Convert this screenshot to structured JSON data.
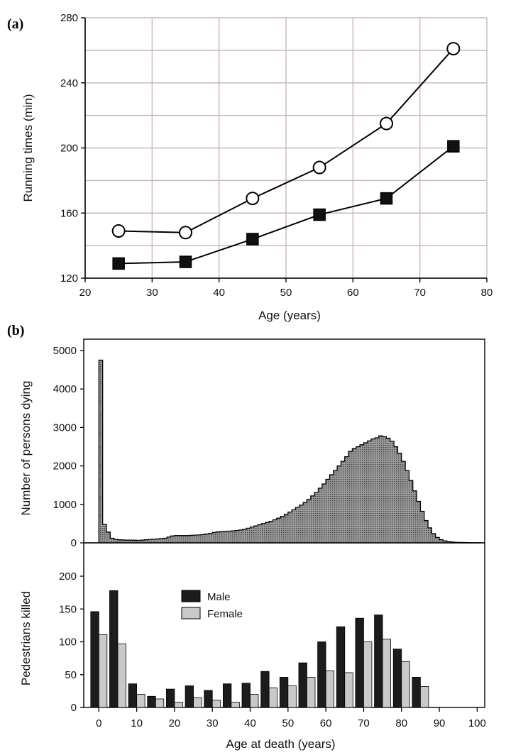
{
  "chart_data": [
    {
      "panel": "(a)",
      "type": "line",
      "xlabel": "Age  (years)",
      "ylabel": "Running times (min)",
      "xlim": [
        20,
        80
      ],
      "ylim": [
        120,
        280
      ],
      "xticks": [
        20,
        30,
        40,
        50,
        60,
        70,
        80
      ],
      "yticks": [
        120,
        160,
        200,
        240,
        280
      ],
      "grid": true,
      "series": [
        {
          "marker": "open-circle",
          "x": [
            25,
            35,
            45,
            55,
            65,
            75
          ],
          "y": [
            149,
            148,
            169,
            188,
            215,
            261
          ]
        },
        {
          "marker": "filled-square",
          "x": [
            25,
            35,
            45,
            55,
            65,
            75
          ],
          "y": [
            129,
            130,
            144,
            159,
            169,
            201
          ]
        }
      ]
    },
    {
      "panel": "(b)",
      "type": "area",
      "ylabel": "Number of persons dying",
      "xlim": [
        -4,
        102
      ],
      "ylim": [
        0,
        5000
      ],
      "yticks": [
        0,
        1000,
        2000,
        3000,
        4000,
        5000
      ],
      "bin_width": 1,
      "x_start": 0,
      "values": [
        4750,
        480,
        280,
        120,
        90,
        80,
        75,
        70,
        70,
        68,
        65,
        70,
        80,
        90,
        95,
        100,
        110,
        120,
        150,
        180,
        190,
        190,
        190,
        190,
        195,
        200,
        205,
        215,
        230,
        245,
        270,
        285,
        295,
        300,
        305,
        310,
        320,
        335,
        350,
        380,
        410,
        440,
        470,
        500,
        530,
        560,
        600,
        640,
        690,
        740,
        800,
        860,
        920,
        980,
        1050,
        1130,
        1220,
        1310,
        1420,
        1530,
        1650,
        1770,
        1880,
        2000,
        2120,
        2240,
        2380,
        2450,
        2500,
        2550,
        2600,
        2650,
        2700,
        2730,
        2780,
        2760,
        2720,
        2640,
        2500,
        2330,
        2120,
        1880,
        1620,
        1350,
        1080,
        820,
        580,
        390,
        240,
        140,
        80,
        50,
        30,
        20,
        14,
        10,
        8,
        6,
        4,
        3,
        2
      ]
    },
    {
      "type": "bar",
      "xlabel": "Age at death (years)",
      "ylabel": "Pedestrians killed",
      "xlim": [
        -4,
        102
      ],
      "ylim": [
        0,
        200
      ],
      "xticks": [
        0,
        10,
        20,
        30,
        40,
        50,
        60,
        70,
        80,
        90,
        100
      ],
      "yticks": [
        0,
        50,
        100,
        150,
        200
      ],
      "categories": [
        0,
        5,
        10,
        15,
        20,
        25,
        30,
        35,
        40,
        45,
        50,
        55,
        60,
        65,
        70,
        75,
        80,
        85
      ],
      "legend_position": "top-left",
      "series": [
        {
          "name": "Male",
          "color": "#1c1c1c",
          "values": [
            146,
            178,
            36,
            17,
            28,
            33,
            26,
            36,
            37,
            55,
            46,
            68,
            100,
            123,
            136,
            141,
            89,
            46
          ]
        },
        {
          "name": "Female",
          "color": "#c9c9c9",
          "values": [
            111,
            97,
            20,
            13,
            8,
            15,
            11,
            8,
            20,
            30,
            33,
            46,
            56,
            53,
            100,
            104,
            70,
            32
          ]
        }
      ]
    }
  ]
}
